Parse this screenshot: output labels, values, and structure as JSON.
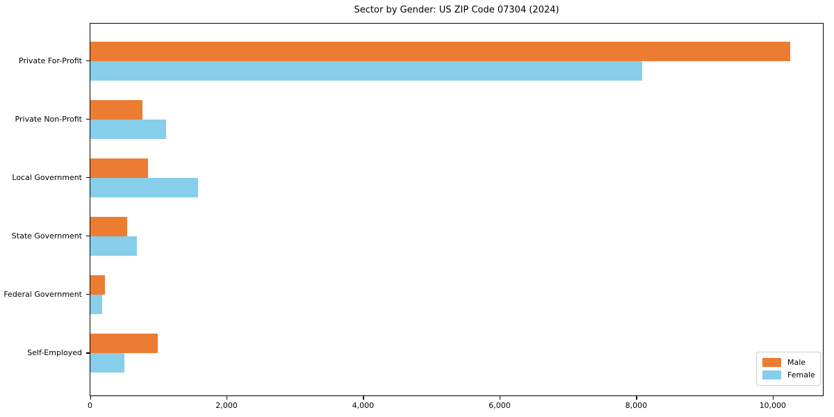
{
  "chart_data": {
    "type": "bar",
    "orientation": "horizontal",
    "title": "Sector by Gender: US ZIP Code 07304 (2024)",
    "categories": [
      "Private For-Profit",
      "Private Non-Profit",
      "Local Government",
      "State Government",
      "Federal Government",
      "Self-Employed"
    ],
    "series": [
      {
        "name": "Male",
        "color": "#ED7C33",
        "values": [
          10250,
          760,
          850,
          540,
          210,
          990
        ]
      },
      {
        "name": "Female",
        "color": "#87CEEB",
        "values": [
          8080,
          1110,
          1580,
          680,
          170,
          500
        ]
      }
    ],
    "xlabel": "",
    "ylabel": "",
    "xlim": [
      0,
      10750
    ],
    "xticks": {
      "values": [
        0,
        2000,
        4000,
        6000,
        8000,
        10000
      ],
      "labels": [
        "0",
        "2,000",
        "4,000",
        "6,000",
        "8,000",
        "10,000"
      ]
    },
    "legend": {
      "entries": [
        "Male",
        "Female"
      ],
      "position": "lower right"
    },
    "grid": false,
    "background": "#ffffff"
  }
}
